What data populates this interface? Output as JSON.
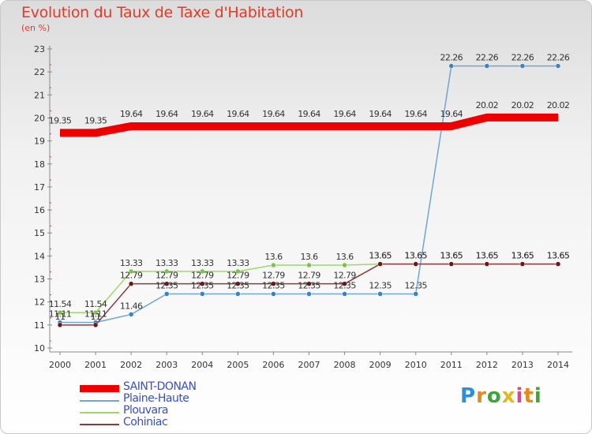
{
  "title": "Evolution du Taux de Taxe d'Habitation",
  "unit_label": "(en %)",
  "brand": "Proxiti",
  "colors": {
    "title": "#e23b2a",
    "legend_text": "#3a4fc0",
    "axis": "#888888",
    "grid": "#e23b2a"
  },
  "chart_data": {
    "type": "line",
    "title": "Evolution du Taux de Taxe d'Habitation",
    "xlabel": "",
    "ylabel": "(en %)",
    "ylim": [
      10,
      23
    ],
    "y_ticks": [
      "10",
      "11",
      "12",
      "13",
      "14",
      "15",
      "16",
      "17",
      "18",
      "19",
      "20",
      "21",
      "22",
      "23"
    ],
    "categories": [
      "2000",
      "2001",
      "2002",
      "2003",
      "2004",
      "2005",
      "2006",
      "2007",
      "2008",
      "2009",
      "2010",
      "2011",
      "2012",
      "2013",
      "2014"
    ],
    "legend_position": "bottom-left",
    "series": [
      {
        "name": "SAINT-DONAN",
        "color": "#ee0000",
        "values": [
          19.35,
          19.35,
          19.64,
          19.64,
          19.64,
          19.64,
          19.64,
          19.64,
          19.64,
          19.64,
          19.64,
          19.64,
          20.02,
          20.02,
          20.02
        ],
        "labels": [
          "19.35",
          "19.35",
          "19.64",
          "19.64",
          "19.64",
          "19.64",
          "19.64",
          "19.64",
          "19.64",
          "19.64",
          "19.64",
          "19.64",
          "20.02",
          "20.02",
          "20.02"
        ]
      },
      {
        "name": "Plaine-Haute",
        "color": "#6fa6d6",
        "marker": "#3a82c4",
        "values": [
          11.11,
          11.11,
          11.46,
          12.35,
          12.35,
          12.35,
          12.35,
          12.35,
          12.35,
          12.35,
          12.35,
          22.26,
          22.26,
          22.26,
          22.26
        ],
        "labels": [
          "11.11",
          "11.11",
          "11.46",
          "12.35",
          "12.35",
          "12.35",
          "12.35",
          "12.35",
          "12.35",
          "12.35",
          "12.35",
          "22.26",
          "22.26",
          "22.26",
          "22.26"
        ]
      },
      {
        "name": "Plouvara",
        "color": "#9ed86a",
        "marker": "#7bc44a",
        "values": [
          11.54,
          11.54,
          13.33,
          13.33,
          13.33,
          13.33,
          13.6,
          13.6,
          13.6,
          13.65,
          13.65,
          13.65,
          13.65,
          13.65,
          13.65
        ],
        "labels": [
          "11.54",
          "11.54",
          "13.33",
          "13.33",
          "13.33",
          "13.33",
          "13.6",
          "13.6",
          "13.6",
          "13.65",
          "13.65",
          "13.65",
          "13.65",
          "13.65",
          "13.65"
        ]
      },
      {
        "name": "Cohiniac",
        "color": "#8a3c3c",
        "marker": "#6a1818",
        "values": [
          11.0,
          11.0,
          12.79,
          12.79,
          12.79,
          12.79,
          12.79,
          12.79,
          12.79,
          13.65,
          13.65,
          13.65,
          13.65,
          13.65,
          13.65
        ],
        "labels": [
          "11",
          "11",
          "12.79",
          "12.79",
          "12.79",
          "12.79",
          "12.79",
          "12.79",
          "12.79",
          "13.65",
          "13.65",
          "13.65",
          "13.65",
          "13.65",
          "13.65"
        ]
      }
    ]
  }
}
